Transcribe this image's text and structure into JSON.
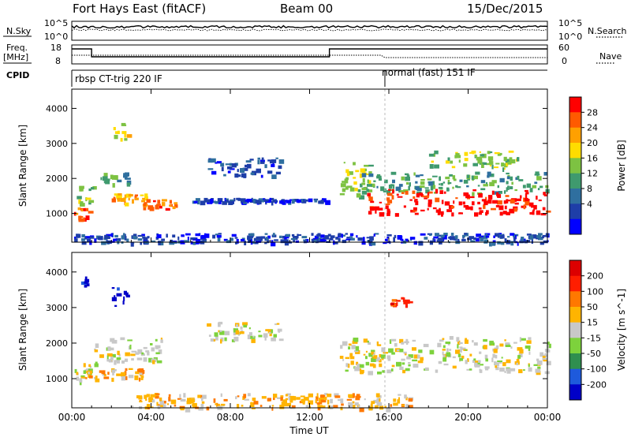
{
  "header": {
    "station": "Fort Hays East (fitACF)",
    "beam": "Beam 00",
    "date": "15/Dec/2015"
  },
  "top_panels": {
    "nsky_label": "N.Sky",
    "nsky_ticks": [
      "10^5",
      "10^0"
    ],
    "nsearch_label": "N.Search",
    "nsearch_ticks": [
      "10^5",
      "10^0"
    ],
    "freq_label": "Freq.",
    "freq_unit": "[MHz]",
    "freq_ticks": [
      "18",
      "8"
    ],
    "nave_label": "Nave",
    "nave_ticks": [
      "60",
      "0"
    ],
    "cpid_label": "CPID",
    "cpid_modes": [
      {
        "label": "rbsp CT-trig 220 IF",
        "start_hour": 0
      },
      {
        "label": "normal (fast) 151 IF",
        "start_hour": 15.8
      }
    ]
  },
  "chart_data": [
    {
      "type": "heatmap",
      "quantity": "Power",
      "colorbar_label": "Power [dB]",
      "colorbar_ticks": [
        "28",
        "24",
        "20",
        "16",
        "12",
        "8",
        "4"
      ],
      "colorbar_colors": [
        "#0000ff",
        "#1e3ea8",
        "#2f6f9f",
        "#3f9a6e",
        "#7dc242",
        "#ffdc00",
        "#ffa000",
        "#ff5a00",
        "#ff0000"
      ],
      "ylabel": "Slant Range [km]",
      "yticks": [
        1000,
        2000,
        3000,
        4000
      ],
      "ylim": [
        180,
        4550
      ],
      "xlim": [
        0,
        24
      ],
      "regions": [
        {
          "t0": 0.1,
          "t1": 1.0,
          "r0": 850,
          "r1": 1200,
          "level": 7
        },
        {
          "t0": 0.2,
          "t1": 1.2,
          "r0": 1300,
          "r1": 1800,
          "level": 4
        },
        {
          "t0": 1.2,
          "t1": 2.8,
          "r0": 1800,
          "r1": 2200,
          "level": 3
        },
        {
          "t0": 2.0,
          "t1": 4.0,
          "r0": 1300,
          "r1": 1600,
          "level": 6
        },
        {
          "t0": 3.5,
          "t1": 5.2,
          "r0": 1150,
          "r1": 1450,
          "level": 7
        },
        {
          "t0": 2.0,
          "t1": 2.8,
          "r0": 3000,
          "r1": 3600,
          "level": 5
        },
        {
          "t0": 6.8,
          "t1": 10.5,
          "r0": 2100,
          "r1": 2600,
          "level": 1
        },
        {
          "t0": 6.0,
          "t1": 13.0,
          "r0": 1350,
          "r1": 1450,
          "level": 1
        },
        {
          "t0": 13.5,
          "t1": 15.0,
          "r0": 1500,
          "r1": 2500,
          "level": 4
        },
        {
          "t0": 14.5,
          "t1": 24.0,
          "r0": 1600,
          "r1": 2200,
          "level": 3
        },
        {
          "t0": 14.8,
          "t1": 24.0,
          "r0": 1000,
          "r1": 1700,
          "level": 8
        },
        {
          "t0": 18.0,
          "t1": 22.5,
          "r0": 2300,
          "r1": 2800,
          "level": 4
        },
        {
          "t0": 0.0,
          "t1": 24.0,
          "r0": 180,
          "r1": 450,
          "level": 1
        }
      ]
    },
    {
      "type": "heatmap",
      "quantity": "Velocity",
      "colorbar_label": "Velocity [m s^-1]",
      "colorbar_ticks": [
        "200",
        "100",
        "50",
        "15",
        "-15",
        "-50",
        "-100",
        "-200"
      ],
      "colorbar_colors": [
        "#0000c8",
        "#1e5adc",
        "#2f8f4f",
        "#7dd23c",
        "#c8c8c8",
        "#ffb400",
        "#ff7800",
        "#ff1e00",
        "#dc0000"
      ],
      "ylabel": "Slant Range [km]",
      "yticks": [
        1000,
        2000,
        3000,
        4000
      ],
      "ylim": [
        180,
        4550
      ],
      "xlim": [
        0,
        24
      ],
      "regions": [
        {
          "t0": 0.1,
          "t1": 1.2,
          "r0": 900,
          "r1": 1500,
          "level": 4
        },
        {
          "t0": 0.2,
          "t1": 3.5,
          "r0": 1000,
          "r1": 1300,
          "level": 5
        },
        {
          "t0": 1.0,
          "t1": 4.5,
          "r0": 1500,
          "r1": 2200,
          "level": 4
        },
        {
          "t0": 2.0,
          "t1": 2.8,
          "r0": 3000,
          "r1": 3600,
          "level": 0
        },
        {
          "t0": 0.3,
          "t1": 0.7,
          "r0": 3600,
          "r1": 4000,
          "level": 0
        },
        {
          "t0": 6.8,
          "t1": 10.5,
          "r0": 2100,
          "r1": 2600,
          "level": 4
        },
        {
          "t0": 13.5,
          "t1": 24.0,
          "r0": 1200,
          "r1": 2200,
          "level": 4
        },
        {
          "t0": 16.0,
          "t1": 17.0,
          "r0": 3100,
          "r1": 3300,
          "level": 7
        },
        {
          "t0": 3.0,
          "t1": 17.0,
          "r0": 180,
          "r1": 600,
          "level": 5
        }
      ]
    }
  ],
  "xaxis": {
    "label": "Time UT",
    "ticks": [
      "00:00",
      "04:00",
      "08:00",
      "12:00",
      "16:00",
      "20:00",
      "00:00"
    ]
  }
}
